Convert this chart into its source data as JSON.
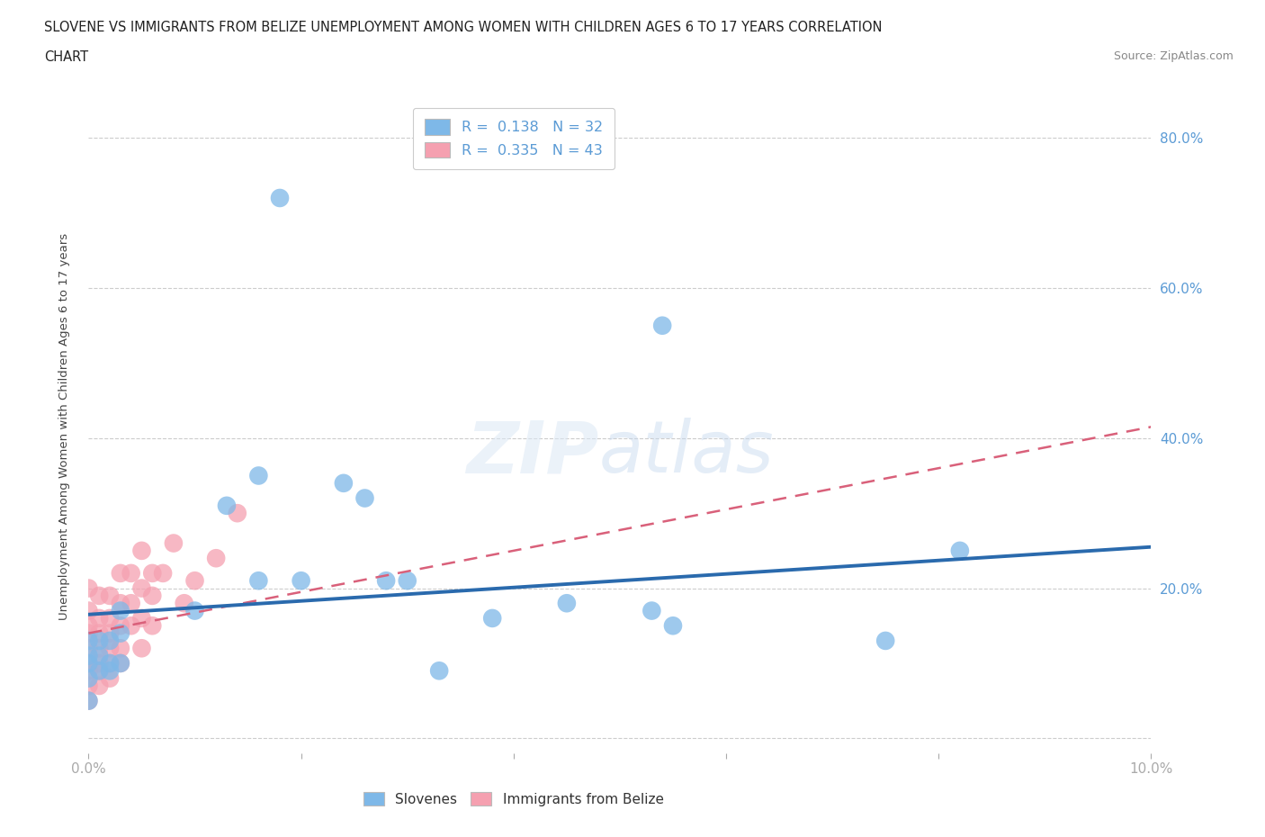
{
  "title_line1": "SLOVENE VS IMMIGRANTS FROM BELIZE UNEMPLOYMENT AMONG WOMEN WITH CHILDREN AGES 6 TO 17 YEARS CORRELATION",
  "title_line2": "CHART",
  "source_text": "Source: ZipAtlas.com",
  "ylabel": "Unemployment Among Women with Children Ages 6 to 17 years",
  "background_color": "#ffffff",
  "slovene_color": "#7eb8e8",
  "belize_color": "#f5a0b0",
  "slovene_line_color": "#2a6aad",
  "belize_line_color": "#d9607a",
  "xlim": [
    0.0,
    0.1
  ],
  "ylim": [
    -0.02,
    0.85
  ],
  "yticks": [
    0.0,
    0.2,
    0.4,
    0.6,
    0.8
  ],
  "ytick_labels": [
    "",
    "20.0%",
    "40.0%",
    "60.0%",
    "80.0%"
  ],
  "slovene_x": [
    0.0,
    0.0,
    0.0,
    0.0,
    0.0,
    0.001,
    0.001,
    0.001,
    0.002,
    0.002,
    0.002,
    0.003,
    0.003,
    0.003,
    0.01,
    0.013,
    0.016,
    0.016,
    0.018,
    0.02,
    0.024,
    0.026,
    0.028,
    0.03,
    0.033,
    0.038,
    0.045,
    0.053,
    0.054,
    0.055,
    0.075,
    0.082
  ],
  "slovene_y": [
    0.05,
    0.08,
    0.1,
    0.11,
    0.13,
    0.09,
    0.11,
    0.13,
    0.09,
    0.1,
    0.13,
    0.1,
    0.14,
    0.17,
    0.17,
    0.31,
    0.35,
    0.21,
    0.72,
    0.21,
    0.34,
    0.32,
    0.21,
    0.21,
    0.09,
    0.16,
    0.18,
    0.17,
    0.55,
    0.15,
    0.13,
    0.25
  ],
  "belize_x": [
    0.0,
    0.0,
    0.0,
    0.0,
    0.0,
    0.0,
    0.0,
    0.0,
    0.0,
    0.001,
    0.001,
    0.001,
    0.001,
    0.001,
    0.001,
    0.001,
    0.002,
    0.002,
    0.002,
    0.002,
    0.002,
    0.002,
    0.003,
    0.003,
    0.003,
    0.003,
    0.003,
    0.004,
    0.004,
    0.004,
    0.005,
    0.005,
    0.005,
    0.005,
    0.006,
    0.006,
    0.006,
    0.007,
    0.008,
    0.009,
    0.01,
    0.012,
    0.014
  ],
  "belize_y": [
    0.05,
    0.07,
    0.09,
    0.1,
    0.12,
    0.14,
    0.15,
    0.17,
    0.2,
    0.07,
    0.09,
    0.1,
    0.12,
    0.14,
    0.16,
    0.19,
    0.08,
    0.1,
    0.12,
    0.14,
    0.16,
    0.19,
    0.1,
    0.12,
    0.15,
    0.18,
    0.22,
    0.15,
    0.18,
    0.22,
    0.12,
    0.16,
    0.2,
    0.25,
    0.15,
    0.19,
    0.22,
    0.22,
    0.26,
    0.18,
    0.21,
    0.24,
    0.3
  ]
}
